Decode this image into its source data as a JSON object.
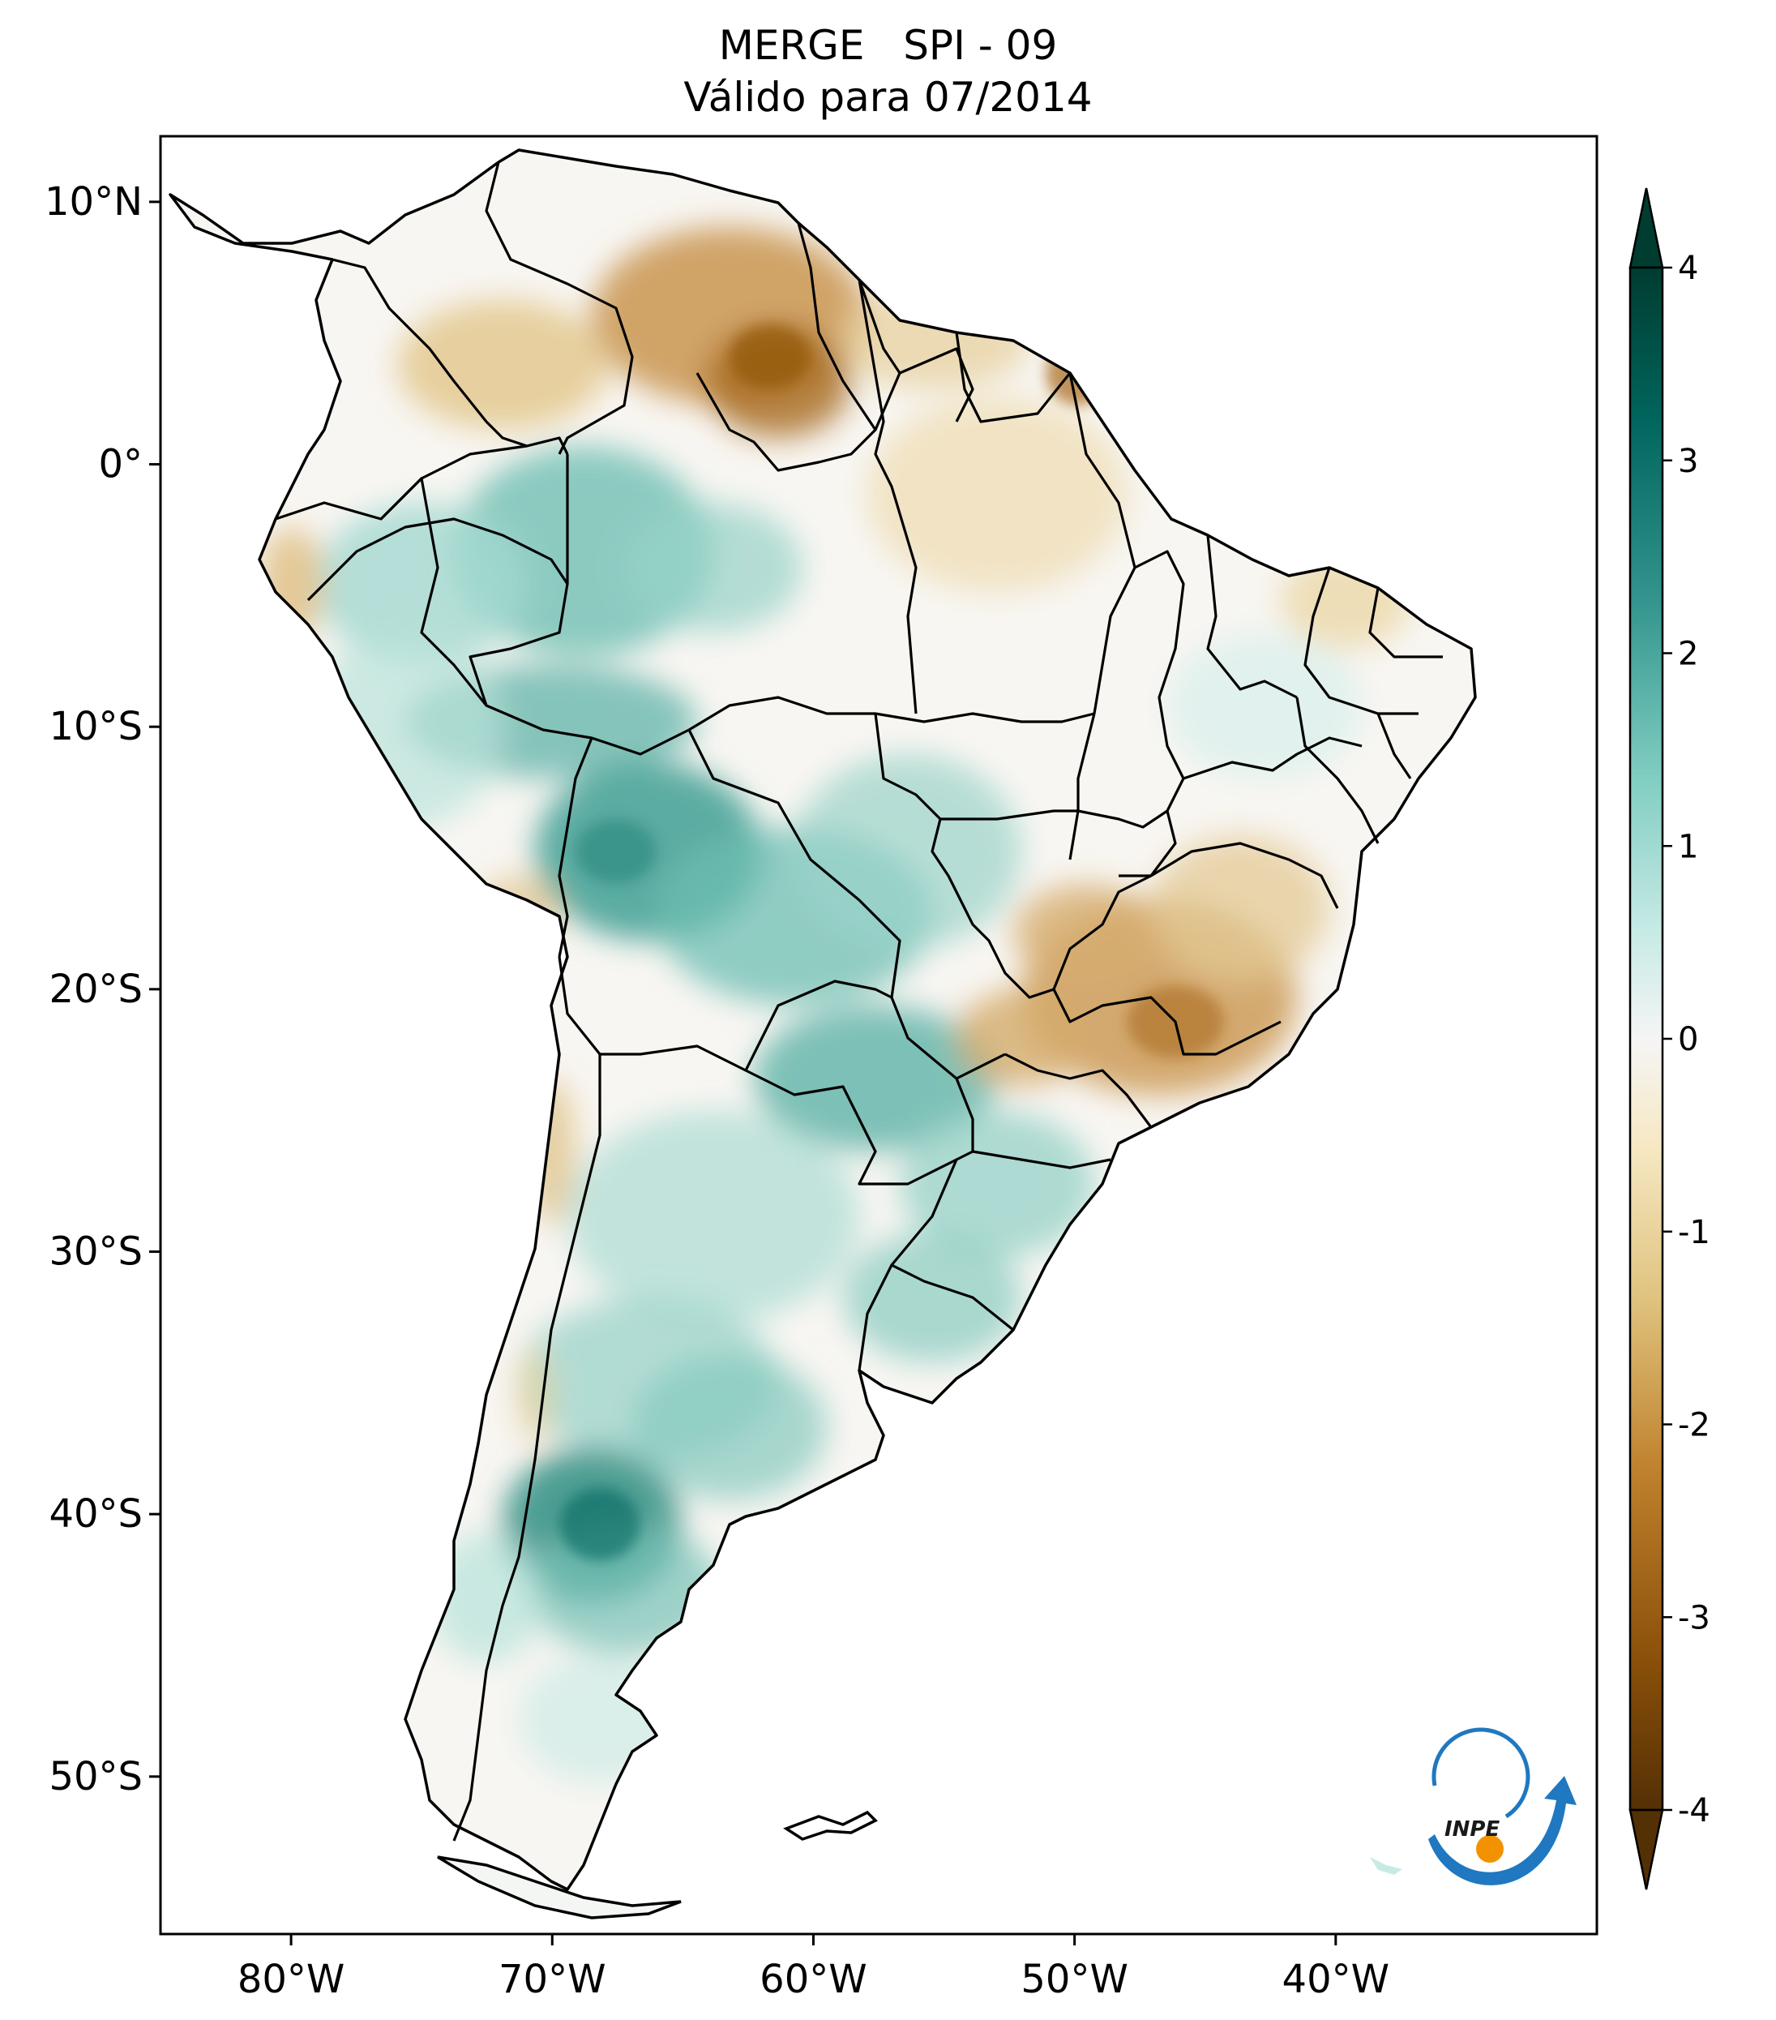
{
  "title": {
    "line1": "MERGE   SPI - 09",
    "line2": "Válido para 07/2014"
  },
  "map": {
    "lon_range": [
      -85,
      -30
    ],
    "lat_range": [
      -56,
      12.5
    ],
    "lon_ticks": [
      {
        "value": -80,
        "label": "80°W"
      },
      {
        "value": -70,
        "label": "70°W"
      },
      {
        "value": -60,
        "label": "60°W"
      },
      {
        "value": -50,
        "label": "50°W"
      },
      {
        "value": -40,
        "label": "40°W"
      }
    ],
    "lat_ticks": [
      {
        "value": 10,
        "label": "10°N"
      },
      {
        "value": 0,
        "label": "0°"
      },
      {
        "value": -10,
        "label": "10°S"
      },
      {
        "value": -20,
        "label": "20°S"
      },
      {
        "value": -30,
        "label": "30°S"
      },
      {
        "value": -40,
        "label": "40°S"
      },
      {
        "value": -50,
        "label": "50°S"
      }
    ],
    "region": "South America",
    "boundaries": "country and state borders",
    "colormap": "BrBG"
  },
  "colorbar": {
    "range": [
      -4,
      4
    ],
    "extend": "both",
    "ticks": [
      {
        "value": 4,
        "label": "4"
      },
      {
        "value": 3,
        "label": "3"
      },
      {
        "value": 2,
        "label": "2"
      },
      {
        "value": 1,
        "label": "1"
      },
      {
        "value": 0,
        "label": "0"
      },
      {
        "value": -1,
        "label": "-1"
      },
      {
        "value": -2,
        "label": "-2"
      },
      {
        "value": -3,
        "label": "-3"
      },
      {
        "value": -4,
        "label": "-4"
      }
    ],
    "colors": [
      "#543005",
      "#8c510a",
      "#bf812d",
      "#dfc27d",
      "#f6e8c3",
      "#f5f5f5",
      "#c7eae5",
      "#80cdc1",
      "#35978f",
      "#01665e",
      "#003c30"
    ]
  },
  "logo": {
    "text": "INPE",
    "colors": {
      "arrow": "#1f78c0",
      "dot": "#f39200"
    }
  }
}
